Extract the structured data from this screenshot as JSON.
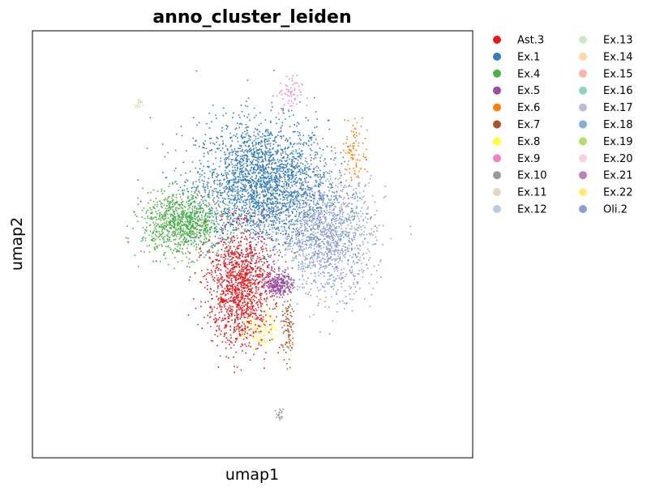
{
  "chart_data": {
    "type": "scatter",
    "title": "anno_cluster_leiden",
    "xlabel": "umap1",
    "ylabel": "umap2",
    "grid": false,
    "ticks": false,
    "legend_placement": "right-outside",
    "legend": [
      {
        "name": "Ast.3",
        "color": "#e41a1c"
      },
      {
        "name": "Ex.1",
        "color": "#377eb8"
      },
      {
        "name": "Ex.4",
        "color": "#4daf4a"
      },
      {
        "name": "Ex.5",
        "color": "#984ea3"
      },
      {
        "name": "Ex.6",
        "color": "#ff7f00"
      },
      {
        "name": "Ex.7",
        "color": "#a65628"
      },
      {
        "name": "Ex.8",
        "color": "#ffff33"
      },
      {
        "name": "Ex.9",
        "color": "#f781bf"
      },
      {
        "name": "Ex.10",
        "color": "#999999"
      },
      {
        "name": "Ex.11",
        "color": "#e5d8bd"
      },
      {
        "name": "Ex.12",
        "color": "#b3cde3"
      },
      {
        "name": "Ex.13",
        "color": "#ccebc5"
      },
      {
        "name": "Ex.14",
        "color": "#fed9a6"
      },
      {
        "name": "Ex.15",
        "color": "#fbb4ae"
      },
      {
        "name": "Ex.16",
        "color": "#8dd3c7"
      },
      {
        "name": "Ex.17",
        "color": "#bebada"
      },
      {
        "name": "Ex.18",
        "color": "#80b1d3"
      },
      {
        "name": "Ex.19",
        "color": "#b3de69"
      },
      {
        "name": "Ex.20",
        "color": "#fccde5"
      },
      {
        "name": "Ex.21",
        "color": "#bc80bd"
      },
      {
        "name": "Ex.22",
        "color": "#ffed6f"
      },
      {
        "name": "Oli.2",
        "color": "#8da0cb"
      }
    ],
    "clusters_approx": [
      {
        "name": "Ex.1",
        "center": [
          0.52,
          0.64
        ],
        "spread": [
          0.1,
          0.1
        ]
      },
      {
        "name": "Ex.4",
        "center": [
          0.34,
          0.55
        ],
        "spread": [
          0.06,
          0.05
        ]
      },
      {
        "name": "Oli.2",
        "center": [
          0.67,
          0.52
        ],
        "spread": [
          0.07,
          0.09
        ]
      },
      {
        "name": "Ast.3",
        "center": [
          0.47,
          0.4
        ],
        "spread": [
          0.05,
          0.09
        ]
      },
      {
        "name": "Ex.5",
        "center": [
          0.56,
          0.41
        ],
        "spread": [
          0.02,
          0.02
        ]
      },
      {
        "name": "Ex.6",
        "center": [
          0.73,
          0.72
        ],
        "spread": [
          0.02,
          0.05
        ]
      },
      {
        "name": "Ex.7",
        "center": [
          0.58,
          0.3
        ],
        "spread": [
          0.01,
          0.05
        ]
      },
      {
        "name": "Ex.8",
        "center": [
          0.52,
          0.3
        ],
        "spread": [
          0.03,
          0.03
        ]
      },
      {
        "name": "Ex.9",
        "center": [
          0.58,
          0.85
        ],
        "spread": [
          0.02,
          0.03
        ]
      },
      {
        "name": "Ex.11",
        "center": [
          0.24,
          0.83
        ],
        "spread": [
          0.005,
          0.01
        ]
      },
      {
        "name": "Ex.10",
        "center": [
          0.56,
          0.1
        ],
        "spread": [
          0.005,
          0.01
        ]
      }
    ]
  }
}
